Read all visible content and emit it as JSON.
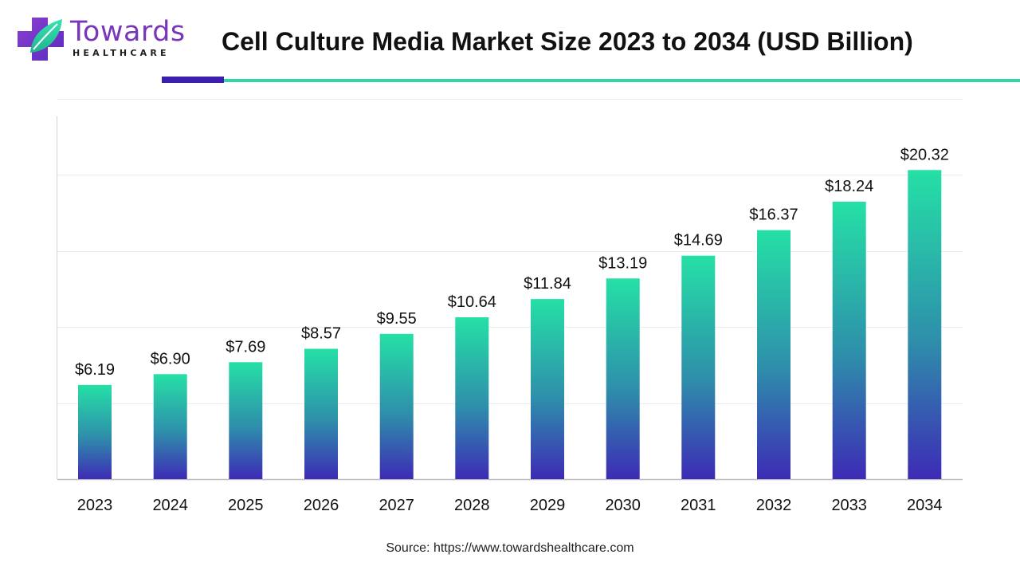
{
  "brand": {
    "name": "Towards",
    "tagline": "HEALTHCARE",
    "colors": {
      "primary": "#7a36b8",
      "accent": "#2fd6a8",
      "dark": "#3d1fb0"
    }
  },
  "source": {
    "label": "Source:",
    "url": "https://www.towardshealthcare.com"
  },
  "chart_data": {
    "type": "bar",
    "title": "Cell Culture Media Market Size 2023 to 2034 (USD Billion)",
    "xlabel": "",
    "ylabel": "",
    "categories": [
      "2023",
      "2024",
      "2025",
      "2026",
      "2027",
      "2028",
      "2029",
      "2030",
      "2031",
      "2032",
      "2033",
      "2034"
    ],
    "values": [
      6.19,
      6.9,
      7.69,
      8.57,
      9.55,
      10.64,
      11.84,
      13.19,
      14.69,
      16.37,
      18.24,
      20.32
    ],
    "data_labels": [
      "$6.19",
      "$6.90",
      "$7.69",
      "$8.57",
      "$9.55",
      "$10.64",
      "$11.84",
      "$13.19",
      "$14.69",
      "$16.37",
      "$18.24",
      "$20.32"
    ],
    "ylim": [
      0,
      25
    ],
    "grid": true,
    "legend": "none",
    "bar_gradient": {
      "top": "#25e0a6",
      "middle": "#2e8fab",
      "bottom": "#3d2bb5"
    }
  }
}
